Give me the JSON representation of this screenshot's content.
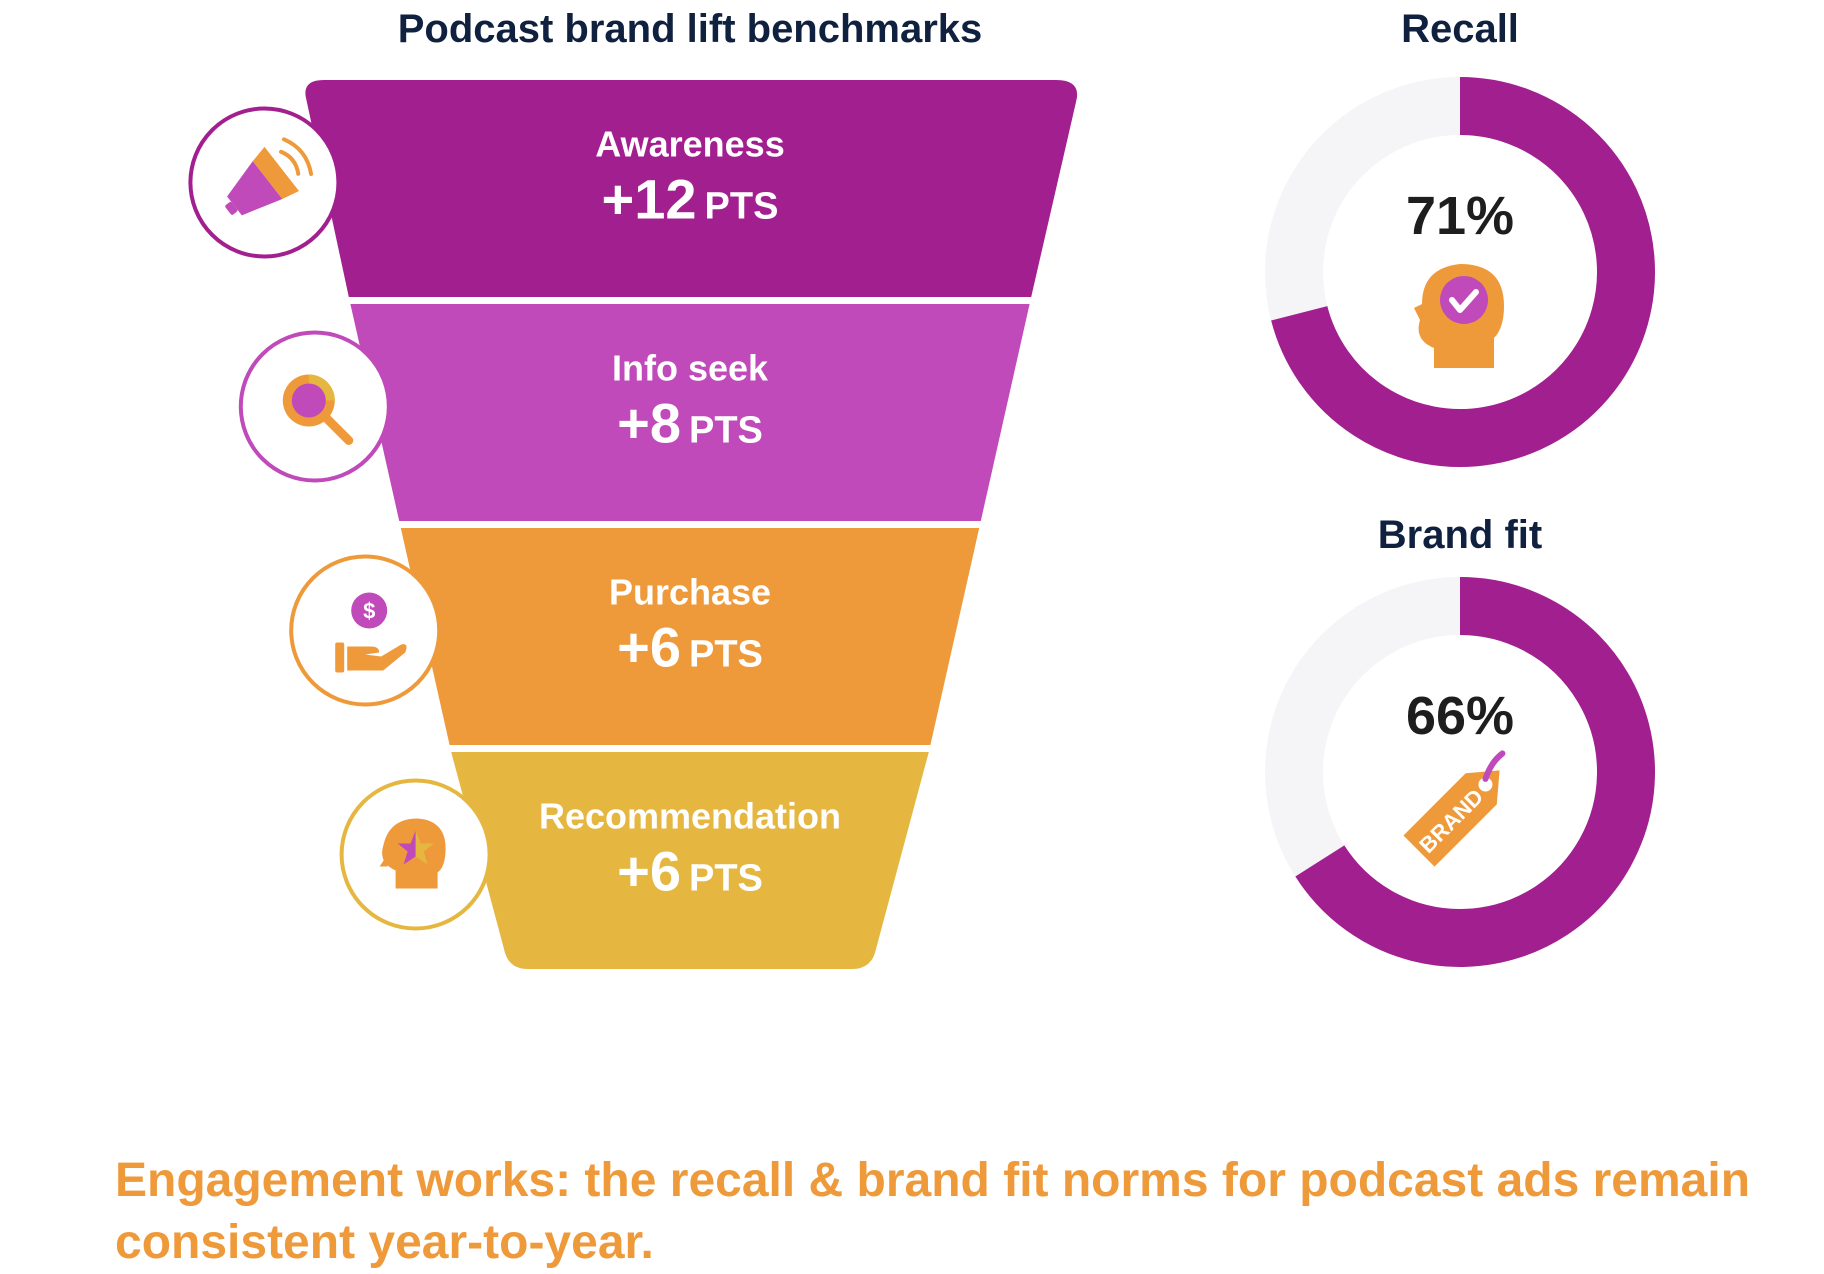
{
  "chart_data": [
    {
      "type": "funnel",
      "title": "Podcast brand lift benchmarks",
      "unit": "PTS",
      "categories": [
        "Awareness",
        "Info seek",
        "Purchase",
        "Recommendation"
      ],
      "values": [
        12,
        8,
        6,
        6
      ],
      "value_labels": [
        "+12",
        "+8",
        "+6",
        "+6"
      ],
      "colors": [
        "#A21F8F",
        "#C04ABA",
        "#EF9A3A",
        "#E6B740"
      ],
      "icons": [
        "megaphone-icon",
        "magnifier-icon",
        "hand-coin-icon",
        "head-star-icon"
      ]
    },
    {
      "type": "pie",
      "title": "Recall",
      "value": 71,
      "label": "71%",
      "color": "#A21F8F",
      "track_color": "#F5F5F7",
      "icon": "head-check-icon"
    },
    {
      "type": "pie",
      "title": "Brand fit",
      "value": 66,
      "label": "66%",
      "color": "#A21F8F",
      "track_color": "#F5F5F7",
      "icon": "brand-tag-icon",
      "icon_text": "BRAND"
    }
  ],
  "caption": "Engagement works: the recall & brand fit norms for podcast ads remain consistent year-to-year."
}
